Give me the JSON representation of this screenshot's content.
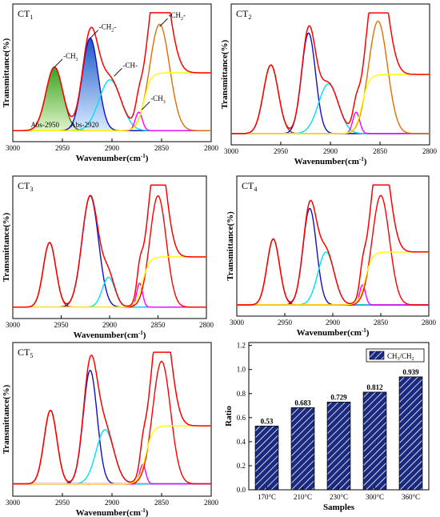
{
  "chart_data": [
    {
      "type": "area",
      "panel_label": "CT",
      "panel_index": "1",
      "xlabel": "Wavenumber(cm",
      "xlabel_sup": "-1",
      "xlabel_end": ")",
      "ylabel": "Transmittance(%)",
      "x_ticks": [
        "3000",
        "2950",
        "2900",
        "2850",
        "2800"
      ],
      "xlim": [
        3000,
        2800
      ],
      "x_reversed": true,
      "series": [
        {
          "kind": "peak",
          "center": 2958,
          "height": 0.55,
          "sigma": 8.5,
          "color": "#6e5020",
          "fill": "green"
        },
        {
          "kind": "peak",
          "center": 2922,
          "height": 0.8,
          "sigma": 8.0,
          "color": "#1010c8",
          "fill": "blue"
        },
        {
          "kind": "peak",
          "center": 2902,
          "height": 0.44,
          "sigma": 11,
          "color": "#00e0f0"
        },
        {
          "kind": "peak",
          "center": 2873,
          "height": 0.16,
          "sigma": 3.5,
          "color": "#ff00ff"
        },
        {
          "kind": "peak",
          "center": 2852,
          "height": 0.92,
          "sigma": 10,
          "color": "#e07000"
        },
        {
          "kind": "sigmoid",
          "center": 2868,
          "height": 0.5,
          "width": 3.5,
          "color": "#ffff00"
        },
        {
          "kind": "envelope",
          "color": "#ff0000"
        }
      ],
      "annotations": [
        {
          "text": "-CH",
          "sub": "3",
          "end": "",
          "x": 2958,
          "y": 0.55
        },
        {
          "text": "-CH",
          "sub": "2",
          "end": "-",
          "x": 2922,
          "y": 0.8
        },
        {
          "text": "-CH-",
          "sub": "",
          "end": "",
          "x": 2898,
          "y": 0.47
        },
        {
          "text": "-CH",
          "sub": "3",
          "end": "",
          "x": 2870,
          "y": 0.18
        },
        {
          "text": "-CH",
          "sub": "2",
          "end": "-",
          "x": 2852,
          "y": 0.9
        },
        {
          "text": "Abs",
          "sub": "",
          "end": "-2950",
          "x": 2969,
          "y": -0.06
        },
        {
          "text": "Abs",
          "sub": "",
          "end": "-2920",
          "x": 2929,
          "y": -0.06
        }
      ]
    },
    {
      "type": "line",
      "panel_label": "CT",
      "panel_index": "2",
      "xlabel": "Wavenumber(cm",
      "xlabel_sup": "-1",
      "xlabel_end": ")",
      "ylabel": "Transmittance(%)",
      "x_ticks": [
        "3000",
        "2950",
        "2900",
        "2850",
        "2800"
      ],
      "xlim": [
        3000,
        2800
      ],
      "x_reversed": true,
      "series": [
        {
          "kind": "peak",
          "center": 2960,
          "height": 0.58,
          "sigma": 7.5,
          "color": "#6e5020"
        },
        {
          "kind": "peak",
          "center": 2922,
          "height": 0.85,
          "sigma": 7.0,
          "color": "#1010c8"
        },
        {
          "kind": "peak",
          "center": 2902,
          "height": 0.42,
          "sigma": 10,
          "color": "#00e0f0"
        },
        {
          "kind": "peak",
          "center": 2874,
          "height": 0.18,
          "sigma": 3.5,
          "color": "#ff00ff"
        },
        {
          "kind": "peak",
          "center": 2852,
          "height": 0.95,
          "sigma": 9.5,
          "color": "#e07000"
        },
        {
          "kind": "sigmoid",
          "center": 2868,
          "height": 0.5,
          "width": 3.5,
          "color": "#ffff00"
        },
        {
          "kind": "envelope",
          "color": "#ff0000"
        }
      ]
    },
    {
      "type": "line",
      "panel_label": "CT",
      "panel_index": "3",
      "xlabel": "Wavenumber(cm",
      "xlabel_sup": "-1",
      "xlabel_end": ")",
      "ylabel": "Transmittance(%)",
      "x_ticks": [
        "3000",
        "2950",
        "2900",
        "2850",
        "2800"
      ],
      "xlim": [
        3000,
        2800
      ],
      "x_reversed": true,
      "series": [
        {
          "kind": "peak",
          "center": 2962,
          "height": 0.54,
          "sigma": 6.5,
          "color": "#ff0000"
        },
        {
          "kind": "peak",
          "center": 2920,
          "height": 0.93,
          "sigma": 8.5,
          "color": "#1010c8"
        },
        {
          "kind": "peak",
          "center": 2901,
          "height": 0.25,
          "sigma": 6.5,
          "color": "#00e0f0"
        },
        {
          "kind": "peak",
          "center": 2869,
          "height": 0.2,
          "sigma": 3.0,
          "color": "#ff00ff"
        },
        {
          "kind": "peak",
          "center": 2850,
          "height": 0.93,
          "sigma": 8.5,
          "color": "#ff0000"
        },
        {
          "kind": "sigmoid",
          "center": 2866,
          "height": 0.42,
          "width": 3.5,
          "color": "#ffff00"
        },
        {
          "kind": "envelope",
          "color": "#ff0000"
        }
      ]
    },
    {
      "type": "line",
      "panel_label": "CT",
      "panel_index": "4",
      "xlabel": "Wavenumber(cm",
      "xlabel_sup": "-1",
      "xlabel_end": ")",
      "ylabel": "Transmittance(%)",
      "x_ticks": [
        "3000",
        "2950",
        "2900",
        "2850",
        "2800"
      ],
      "xlim": [
        3000,
        2800
      ],
      "x_reversed": true,
      "series": [
        {
          "kind": "peak",
          "center": 2962,
          "height": 0.56,
          "sigma": 6.5,
          "color": "#ff0000"
        },
        {
          "kind": "peak",
          "center": 2924,
          "height": 0.82,
          "sigma": 7.0,
          "color": "#1010c8"
        },
        {
          "kind": "peak",
          "center": 2907,
          "height": 0.45,
          "sigma": 8.5,
          "color": "#00e0f0"
        },
        {
          "kind": "peak",
          "center": 2869,
          "height": 0.17,
          "sigma": 3.0,
          "color": "#ff00ff"
        },
        {
          "kind": "peak",
          "center": 2850,
          "height": 0.93,
          "sigma": 9.0,
          "color": "#ff0000"
        },
        {
          "kind": "sigmoid",
          "center": 2866,
          "height": 0.45,
          "width": 3.5,
          "color": "#ffff00"
        },
        {
          "kind": "envelope",
          "color": "#ff0000"
        }
      ]
    },
    {
      "type": "line",
      "panel_label": "CT",
      "panel_index": "5",
      "xlabel": "Wavenumber(cm",
      "xlabel_sup": "-1",
      "xlabel_end": ")",
      "ylabel": "Transmittance(%)",
      "x_ticks": [
        "3000",
        "2950",
        "2900",
        "2850",
        "2800"
      ],
      "xlim": [
        3000,
        2800
      ],
      "x_reversed": true,
      "series": [
        {
          "kind": "peak",
          "center": 2962,
          "height": 0.57,
          "sigma": 6.5,
          "color": "#ff0000"
        },
        {
          "kind": "peak",
          "center": 2922,
          "height": 0.88,
          "sigma": 7.0,
          "color": "#1010c8"
        },
        {
          "kind": "peak",
          "center": 2907,
          "height": 0.42,
          "sigma": 9.0,
          "color": "#00e0f0"
        },
        {
          "kind": "peak",
          "center": 2869,
          "height": 0.15,
          "sigma": 3.0,
          "color": "#ff00ff"
        },
        {
          "kind": "peak",
          "center": 2850,
          "height": 0.95,
          "sigma": 9.0,
          "color": "#ff0000"
        },
        {
          "kind": "sigmoid",
          "center": 2866,
          "height": 0.45,
          "width": 3.5,
          "color": "#ffff00"
        },
        {
          "kind": "envelope",
          "color": "#ff0000"
        }
      ]
    },
    {
      "type": "bar",
      "xlabel": "Samples",
      "ylabel": "Ratio",
      "categories": [
        "170°C",
        "210°C",
        "230°C",
        "300°C",
        "360°C"
      ],
      "values": [
        0.53,
        0.683,
        0.729,
        0.812,
        0.939
      ],
      "value_labels": [
        "0.53",
        "0.683",
        "0.729",
        "0.812",
        "0.939"
      ],
      "y_ticks": [
        "0.0",
        "0.2",
        "0.4",
        "0.6",
        "0.8",
        "1.0",
        "1.2"
      ],
      "ylim": [
        0,
        1.2
      ],
      "legend": {
        "text": "CH",
        "sub1": "3",
        "mid": "/CH",
        "sub2": "2",
        "position": "top-right"
      },
      "bar_color": "#1a2a80"
    }
  ]
}
